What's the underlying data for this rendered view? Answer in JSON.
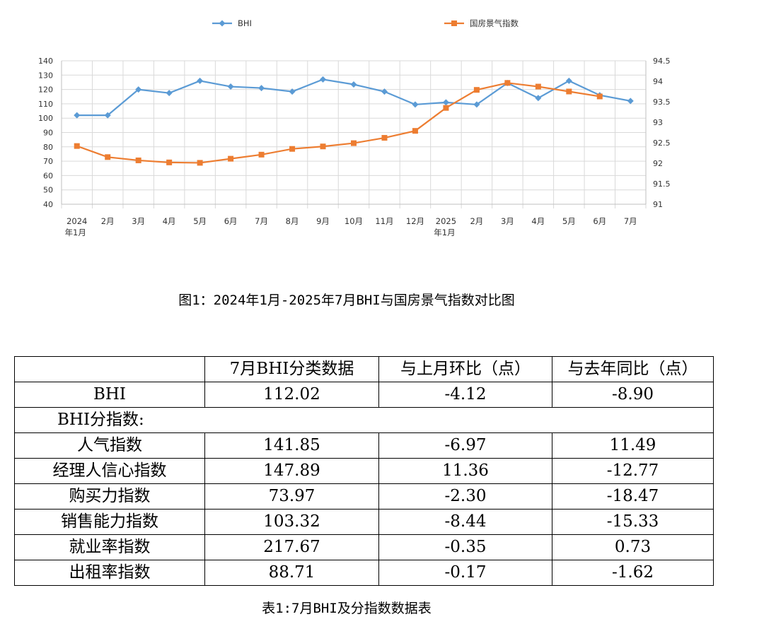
{
  "chart_data": {
    "type": "line",
    "categories": [
      [
        "2024",
        "年1月"
      ],
      [
        "2月"
      ],
      [
        "3月"
      ],
      [
        "4月"
      ],
      [
        "5月"
      ],
      [
        "6月"
      ],
      [
        "7月"
      ],
      [
        "8月"
      ],
      [
        "9月"
      ],
      [
        "10月"
      ],
      [
        "11月"
      ],
      [
        "12月"
      ],
      [
        "2025",
        "年1月"
      ],
      [
        "2月"
      ],
      [
        "3月"
      ],
      [
        "4月"
      ],
      [
        "5月"
      ],
      [
        "6月"
      ],
      [
        "7月"
      ]
    ],
    "series": [
      {
        "name": "BHI",
        "axis": "left",
        "color": "#5b9bd5",
        "marker": "diamond",
        "values": [
          102,
          102,
          120,
          117.5,
          126,
          122,
          121,
          118.5,
          127,
          123.5,
          118.5,
          109.5,
          111,
          109.5,
          124.5,
          114,
          126,
          116,
          112
        ]
      },
      {
        "name": "国房景气指数",
        "axis": "right",
        "color": "#ed7d31",
        "marker": "square",
        "values": [
          92.42,
          92.15,
          92.07,
          92.02,
          92.01,
          92.11,
          92.21,
          92.35,
          92.41,
          92.49,
          92.62,
          92.79,
          93.35,
          93.79,
          93.96,
          93.87,
          93.75,
          93.63,
          null
        ]
      }
    ],
    "y_left": {
      "min": 40,
      "max": 140,
      "ticks": [
        "40",
        "50",
        "60",
        "70",
        "80",
        "90",
        "100",
        "110",
        "120",
        "130",
        "140"
      ]
    },
    "y_right": {
      "min": 91,
      "max": 94.5,
      "ticks": [
        "91",
        "91.5",
        "92",
        "92.5",
        "93",
        "93.5",
        "94",
        "94.5"
      ]
    },
    "grid": true,
    "legend_position": "top"
  },
  "figure_caption": "图1：2024年1月-2025年7月BHI与国房景气指数对比图",
  "table": {
    "headers": [
      "",
      "7月BHI分类数据",
      "与上月环比（点）",
      "与去年同比（点）"
    ],
    "bhi_row": [
      "BHI",
      "112.02",
      "-4.12",
      "-8.90"
    ],
    "sub_label": "BHI分指数:",
    "rows": [
      [
        "人气指数",
        "141.85",
        "-6.97",
        "11.49"
      ],
      [
        "经理人信心指数",
        "147.89",
        "11.36",
        "-12.77"
      ],
      [
        "购买力指数",
        "73.97",
        "-2.30",
        "-18.47"
      ],
      [
        "销售能力指数",
        "103.32",
        "-8.44",
        "-15.33"
      ],
      [
        "就业率指数",
        "217.67",
        "-0.35",
        "0.73"
      ],
      [
        "出租率指数",
        "88.71",
        "-0.17",
        "-1.62"
      ]
    ]
  },
  "table_caption": "表1:7月BHI及分指数数据表"
}
